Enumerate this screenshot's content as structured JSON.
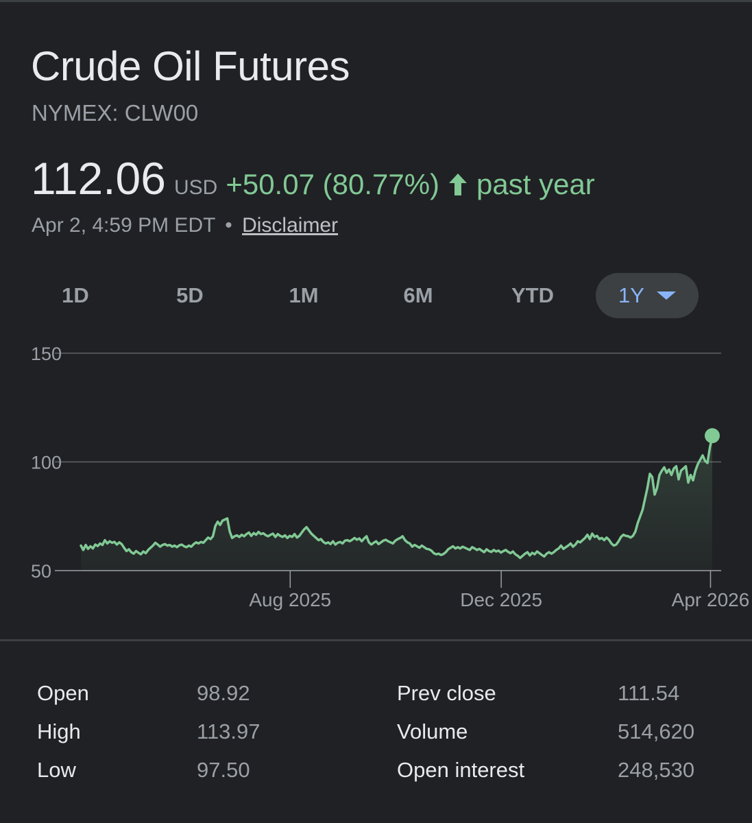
{
  "header": {
    "title": "Crude Oil Futures",
    "ticker": "NYMEX: CLW00"
  },
  "quote": {
    "price": "112.06",
    "currency": "USD",
    "change": "+50.07 (80.77%)",
    "period": "past year",
    "timestamp": "Apr 2, 4:59 PM EDT",
    "separator": "•",
    "disclaimer": "Disclaimer"
  },
  "colors": {
    "background": "#202124",
    "positive": "#81c995",
    "active_tab": "#8ab4f8"
  },
  "ranges": [
    {
      "label": "1D",
      "active": false
    },
    {
      "label": "5D",
      "active": false
    },
    {
      "label": "1M",
      "active": false
    },
    {
      "label": "6M",
      "active": false
    },
    {
      "label": "YTD",
      "active": false
    },
    {
      "label": "1Y",
      "active": true
    }
  ],
  "chart_data": {
    "type": "area",
    "y_ticks": [
      50,
      100,
      150
    ],
    "ylim": [
      50,
      150
    ],
    "x_ticks": [
      {
        "label": "Aug 2025",
        "date": "2025-08-01"
      },
      {
        "label": "Dec 2025",
        "date": "2025-12-01"
      },
      {
        "label": "Apr 2026",
        "date": "2026-04-01"
      }
    ],
    "xlim": [
      "2025-04-02",
      "2026-04-02"
    ],
    "grid": true,
    "series": [
      {
        "values": [
          61.5,
          59.5,
          61.8,
          60.0,
          61.2,
          60.2,
          62.0,
          61.3,
          62.5,
          61.8,
          64.0,
          62.5,
          63.5,
          62.8,
          63.2,
          62.0,
          63.0,
          62.2,
          60.5,
          59.0,
          59.8,
          58.5,
          57.8,
          59.0,
          58.2,
          57.5,
          58.8,
          58.0,
          59.5,
          60.5,
          61.5,
          62.8,
          62.0,
          61.0,
          61.8,
          62.2,
          61.5,
          61.8,
          61.0,
          61.5,
          60.8,
          61.6,
          62.0,
          61.2,
          60.8,
          61.5,
          61.0,
          62.2,
          63.0,
          62.5,
          63.2,
          62.8,
          64.0,
          65.2,
          64.5,
          65.8,
          70.5,
          72.5,
          71.0,
          73.0,
          73.5,
          74.0,
          68.0,
          65.0,
          65.8,
          66.2,
          65.5,
          66.5,
          65.8,
          66.8,
          67.5,
          66.0,
          67.3,
          66.5,
          67.8,
          66.8,
          67.2,
          66.3,
          65.8,
          66.5,
          67.0,
          65.5,
          66.8,
          66.0,
          65.5,
          66.2,
          65.0,
          66.0,
          65.5,
          66.8,
          65.2,
          66.0,
          67.5,
          69.0,
          70.0,
          68.5,
          67.0,
          66.0,
          65.0,
          64.0,
          64.5,
          63.2,
          62.5,
          63.0,
          62.2,
          63.5,
          62.0,
          62.8,
          63.2,
          62.5,
          63.8,
          64.0,
          63.5,
          64.2,
          65.0,
          64.2,
          64.8,
          63.5,
          64.8,
          65.8,
          63.0,
          62.0,
          62.8,
          63.5,
          62.2,
          63.0,
          63.8,
          64.2,
          63.5,
          63.0,
          62.5,
          63.8,
          64.5,
          65.0,
          65.8,
          64.0,
          63.0,
          62.5,
          61.0,
          61.8,
          61.2,
          60.5,
          61.5,
          60.8,
          60.0,
          59.8,
          59.2,
          58.0,
          57.5,
          57.8,
          57.2,
          57.6,
          58.5,
          59.8,
          60.5,
          61.2,
          60.2,
          60.8,
          60.2,
          61.0,
          60.5,
          60.0,
          59.5,
          60.8,
          60.2,
          59.5,
          60.0,
          59.2,
          58.5,
          59.8,
          59.0,
          58.6,
          59.5,
          58.8,
          59.2,
          58.3,
          59.0,
          59.5,
          58.6,
          58.0,
          58.8,
          57.5,
          56.8,
          55.8,
          56.8,
          57.8,
          58.5,
          57.0,
          58.2,
          57.5,
          58.8,
          58.0,
          57.2,
          56.5,
          57.8,
          58.5,
          57.8,
          58.5,
          59.5,
          60.2,
          61.5,
          60.0,
          60.8,
          61.5,
          62.5,
          61.0,
          62.0,
          63.5,
          63.0,
          64.0,
          65.0,
          66.5,
          64.5,
          67.0,
          65.5,
          66.0,
          64.5,
          65.0,
          64.0,
          65.2,
          64.2,
          62.5,
          61.5,
          62.0,
          63.5,
          65.5,
          66.5,
          66.0,
          65.8,
          65.2,
          66.0,
          68.0,
          72.0,
          75.0,
          78.0,
          83.0,
          88.0,
          94.5,
          93.0,
          85.0,
          88.0,
          94.0,
          96.0,
          97.5,
          95.0,
          96.5,
          94.0,
          97.0,
          98.0,
          92.0,
          96.0,
          97.0,
          98.0,
          90.5,
          94.0,
          91.5,
          96.0,
          99.0,
          101.0,
          103.0,
          100.5,
          99.5,
          106.5,
          112.06
        ]
      }
    ]
  },
  "stats": {
    "left": [
      {
        "label": "Open",
        "value": "98.92"
      },
      {
        "label": "High",
        "value": "113.97"
      },
      {
        "label": "Low",
        "value": "97.50"
      }
    ],
    "right": [
      {
        "label": "Prev close",
        "value": "111.54"
      },
      {
        "label": "Volume",
        "value": "514,620"
      },
      {
        "label": "Open interest",
        "value": "248,530"
      }
    ]
  }
}
